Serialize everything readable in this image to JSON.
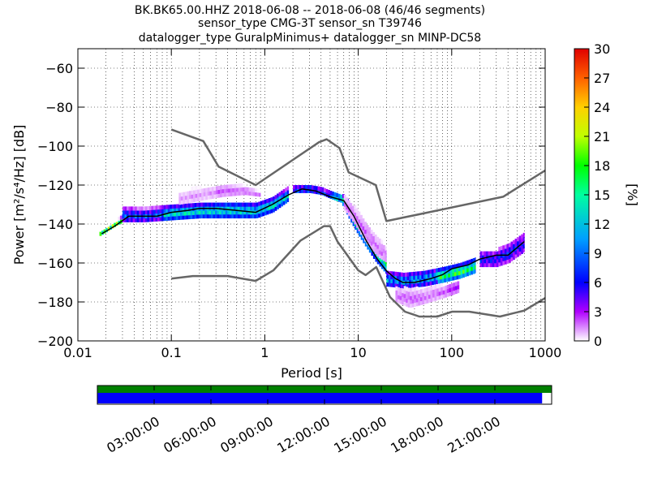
{
  "chart_data": {
    "type": "heatmap",
    "title_lines": [
      "BK.BK65.00.HHZ   2018-06-08 -- 2018-06-08  (46/46 segments)",
      "sensor_type CMG-3T sensor_sn T39746",
      "datalogger_type GuralpMinimus+ datalogger_sn MINP-DC58"
    ],
    "xlabel": "Period [s]",
    "ylabel": "Power [m²/s⁴/Hz] [dB]",
    "x_scale": "log",
    "xlim": [
      0.01,
      1000
    ],
    "ylim": [
      -200,
      -50
    ],
    "x_ticks": [
      0.01,
      0.1,
      1,
      10,
      100,
      1000
    ],
    "x_tick_labels": [
      "0.01",
      "0.1",
      "1",
      "10",
      "100",
      "1000"
    ],
    "y_ticks": [
      -200,
      -180,
      -160,
      -140,
      -120,
      -100,
      -80,
      -60
    ],
    "y_tick_labels": [
      "−200",
      "−180",
      "−160",
      "−140",
      "−120",
      "−100",
      "−80",
      "−60"
    ],
    "grid": true,
    "colorbar": {
      "label": "[%]",
      "range": [
        0,
        30
      ],
      "ticks": [
        0,
        3,
        6,
        9,
        12,
        15,
        18,
        21,
        24,
        27,
        30
      ],
      "tick_labels": [
        "0",
        "3",
        "6",
        "9",
        "12",
        "15",
        "18",
        "21",
        "24",
        "27",
        "30"
      ]
    },
    "series": [
      {
        "kind": "mode",
        "color": "#000000",
        "x": [
          0.018,
          0.025,
          0.035,
          0.05,
          0.07,
          0.1,
          0.15,
          0.2,
          0.3,
          0.5,
          0.8,
          1.2,
          1.8,
          2.5,
          3.5,
          5,
          7,
          9,
          12,
          16,
          20,
          25,
          30,
          40,
          60,
          80,
          100,
          150,
          200,
          300,
          400,
          600
        ],
        "y": [
          -145,
          -141,
          -136,
          -136,
          -136,
          -134,
          -133,
          -132,
          -132,
          -133,
          -134,
          -130,
          -125,
          -122,
          -123,
          -126,
          -128,
          -136,
          -148,
          -158,
          -164,
          -168,
          -170,
          -170,
          -168,
          -166,
          -163,
          -161,
          -158,
          -156,
          -156,
          -149
        ]
      },
      {
        "kind": "high_noise_model",
        "color": "#666666",
        "x": [
          0.1,
          0.22,
          0.32,
          0.8,
          3.8,
          4.6,
          6.3,
          7.9,
          15.4,
          20,
          354.8,
          1000
        ],
        "y": [
          -91.5,
          -97.4,
          -110.5,
          -120,
          -98,
          -96.5,
          -101,
          -113.5,
          -120,
          -138.5,
          -126,
          -112.5
        ]
      },
      {
        "kind": "low_noise_model",
        "color": "#666666",
        "x": [
          0.1,
          0.17,
          0.4,
          0.8,
          1.24,
          2.4,
          4.3,
          5,
          6,
          10,
          12,
          15.6,
          21.9,
          31.6,
          45,
          70,
          101,
          154,
          328,
          600,
          1000
        ],
        "y": [
          -168,
          -166.7,
          -166.7,
          -169.2,
          -163.7,
          -148.6,
          -141.1,
          -141.1,
          -149,
          -163.8,
          -166.2,
          -162.1,
          -177.5,
          -185,
          -187.5,
          -187.5,
          -185,
          -185,
          -187.5,
          -184.4,
          -178
        ]
      }
    ],
    "density_bands": [
      {
        "x": [
          0.017,
          0.02,
          0.025,
          0.03
        ],
        "y_low": [
          -146,
          -144,
          -141,
          -139
        ],
        "y_high": [
          -144,
          -142,
          -139,
          -136
        ],
        "percent": 27
      },
      {
        "x": [
          0.03,
          0.05,
          0.1,
          0.2,
          0.4,
          0.8,
          1.2,
          1.8
        ],
        "y_low": [
          -139,
          -139,
          -138,
          -137,
          -137,
          -137,
          -134,
          -128
        ],
        "y_high": [
          -132,
          -133,
          -131,
          -130,
          -129,
          -130,
          -127,
          -122
        ],
        "percent": 14
      },
      {
        "x": [
          0.12,
          0.2,
          0.35,
          0.6,
          0.9
        ],
        "y_low": [
          -130,
          -128,
          -126,
          -125,
          -126
        ],
        "y_high": [
          -124,
          -122,
          -120,
          -121,
          -124
        ],
        "percent": 2
      },
      {
        "x": [
          2,
          3,
          4,
          5,
          6.5,
          8,
          10,
          12,
          15,
          20
        ],
        "y_low": [
          -124,
          -124,
          -125,
          -127,
          -129,
          -138,
          -146,
          -152,
          -159,
          -166
        ],
        "y_high": [
          -121,
          -120,
          -122,
          -124,
          -125,
          -130,
          -138,
          -143,
          -150,
          -157
        ],
        "percent": 16
      },
      {
        "x": [
          7,
          9,
          12,
          16,
          20
        ],
        "y_low": [
          -133,
          -140,
          -150,
          -157,
          -160
        ],
        "y_high": [
          -126,
          -132,
          -140,
          -148,
          -153
        ],
        "percent": 3
      },
      {
        "x": [
          20,
          30,
          50,
          80,
          120,
          180
        ],
        "y_low": [
          -172,
          -173,
          -172,
          -170,
          -168,
          -165
        ],
        "y_high": [
          -165,
          -166,
          -164,
          -163,
          -161,
          -158
        ],
        "percent": 18
      },
      {
        "x": [
          25,
          35,
          50,
          80,
          120
        ],
        "y_low": [
          -180,
          -183,
          -181,
          -178,
          -175
        ],
        "y_high": [
          -173,
          -174,
          -174,
          -172,
          -169
        ],
        "percent": 3
      },
      {
        "x": [
          200,
          300,
          400,
          600
        ],
        "y_low": [
          -162,
          -162,
          -160,
          -154
        ],
        "y_high": [
          -154,
          -154,
          -150,
          -145
        ],
        "percent": 11
      }
    ]
  },
  "timeline": {
    "tick_labels": [
      "03:00:00",
      "06:00:00",
      "09:00:00",
      "12:00:00",
      "15:00:00",
      "18:00:00",
      "21:00:00"
    ],
    "tick_hours": [
      3,
      6,
      9,
      12,
      15,
      18,
      21
    ],
    "span_hours": 24,
    "data_coverage_fraction": 1.0,
    "psd_coverage_fraction": 0.979,
    "data_color": "#008000",
    "psd_color": "#0000ff"
  }
}
